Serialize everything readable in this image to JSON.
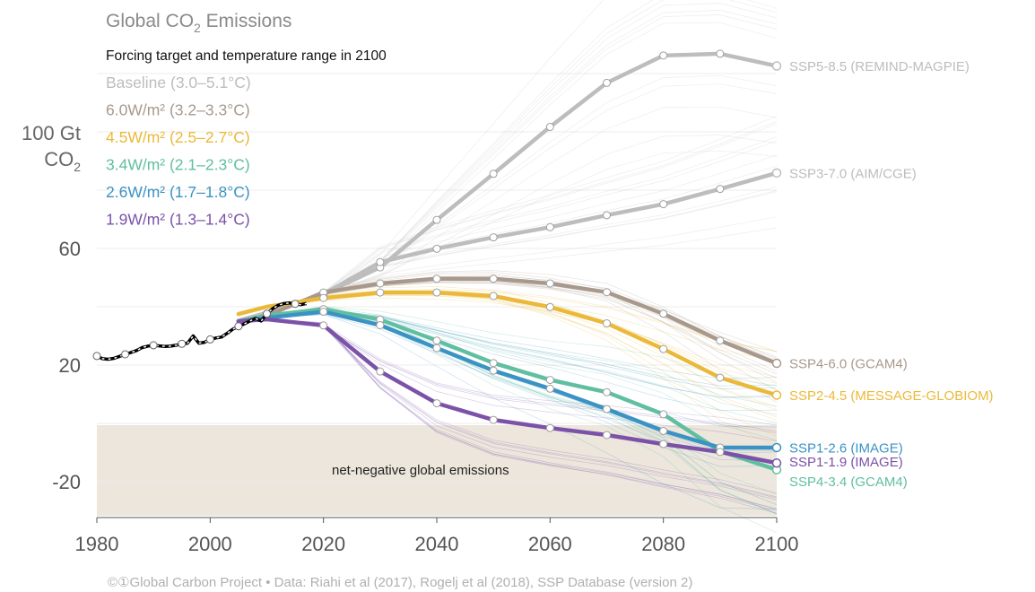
{
  "chart_data": {
    "type": "line",
    "title": "Global CO",
    "title_sub": "2",
    "title_tail": " Emissions",
    "ylabel_line1": "100 Gt",
    "ylabel_line2": "CO",
    "ylabel_sub": "2",
    "xlim": [
      1980,
      2100
    ],
    "ylim": [
      -30,
      124
    ],
    "x_ticks": [
      1980,
      2000,
      2020,
      2040,
      2060,
      2080,
      2100
    ],
    "x_tick_labels": [
      "1980",
      "2000",
      "2020",
      "2040",
      "2060",
      "2080",
      "2100"
    ],
    "y_ticks": [
      -20,
      20,
      60
    ],
    "y_tick_labels": [
      "-20",
      "20",
      "60"
    ],
    "y_top_tick": 100,
    "grid_y": [
      -20,
      0,
      20,
      40,
      60,
      80,
      100,
      120
    ],
    "legend_heading": "Forcing target and temperature range in 2100",
    "legend": [
      {
        "label": "Baseline (3.0–5.1°C)",
        "color": "#bdbdbd"
      },
      {
        "label": "6.0W/m² (3.2–3.3°C)",
        "color": "#a8998c"
      },
      {
        "label": "4.5W/m² (2.5–2.7°C)",
        "color": "#ebb93a"
      },
      {
        "label": "3.4W/m² (2.1–2.3°C)",
        "color": "#5fbfa0"
      },
      {
        "label": "2.6W/m² (1.7–1.8°C)",
        "color": "#3b93c4"
      },
      {
        "label": "1.9W/m² (1.3–1.4°C)",
        "color": "#7b52a8"
      }
    ],
    "negative_region_label": "net-negative global emissions",
    "historical": {
      "x": [
        1980,
        1981,
        1982,
        1983,
        1984,
        1985,
        1986,
        1987,
        1988,
        1989,
        1990,
        1991,
        1992,
        1993,
        1994,
        1995,
        1996,
        1997,
        1998,
        1999,
        2000,
        2001,
        2002,
        2003,
        2004,
        2005,
        2006,
        2007,
        2008,
        2009,
        2010,
        2011,
        2012,
        2013,
        2014,
        2015,
        2016,
        2017
      ],
      "y": [
        23.1,
        22.2,
        22.0,
        22.3,
        23.0,
        23.7,
        24.3,
        25.0,
        26.0,
        26.5,
        26.8,
        26.6,
        26.4,
        26.5,
        26.8,
        27.3,
        27.5,
        30.0,
        27.5,
        27.8,
        28.8,
        29.3,
        29.6,
        30.9,
        32.3,
        33.3,
        34.1,
        35.1,
        36.0,
        35.1,
        37.6,
        39.3,
        40.5,
        41.1,
        41.3,
        41.0,
        40.7,
        41.1
      ],
      "color": "#000000"
    },
    "series": [
      {
        "name": "SSP5-8.5 (REMIND-MAGPIE)",
        "color": "#bdbdbd",
        "x": [
          2005,
          2010,
          2020,
          2030,
          2040,
          2050,
          2060,
          2070,
          2080,
          2090,
          2100
        ],
        "y": [
          35.2,
          37.9,
          44.3,
          53.5,
          69.8,
          85.6,
          101.7,
          116.8,
          126.2,
          126.8,
          122.6
        ]
      },
      {
        "name": "SSP3-7.0 (AIM/CGE)",
        "color": "#bdbdbd",
        "x": [
          2005,
          2010,
          2020,
          2030,
          2040,
          2050,
          2060,
          2070,
          2080,
          2090,
          2100
        ],
        "y": [
          35.2,
          37.9,
          44.3,
          55.3,
          59.9,
          63.8,
          67.3,
          71.4,
          75.2,
          80.4,
          85.9
        ]
      },
      {
        "name": "SSP4-6.0 (GCAM4)",
        "color": "#a8998c",
        "x": [
          2005,
          2010,
          2020,
          2030,
          2040,
          2050,
          2060,
          2070,
          2080,
          2090,
          2100
        ],
        "y": [
          35.0,
          37.0,
          44.9,
          48.0,
          49.6,
          49.6,
          48.0,
          45.0,
          37.6,
          28.4,
          20.6
        ]
      },
      {
        "name": "SSP2-4.5 (MESSAGE-GLOBIOM)",
        "color": "#ebb93a",
        "x": [
          2005,
          2010,
          2020,
          2030,
          2040,
          2050,
          2060,
          2070,
          2080,
          2090,
          2100
        ],
        "y": [
          37.5,
          40.0,
          43.0,
          44.9,
          44.9,
          43.7,
          39.9,
          34.3,
          25.5,
          15.7,
          9.7
        ]
      },
      {
        "name": "SSP4-3.4 (GCAM4)",
        "color": "#5fbfa0",
        "x": [
          2005,
          2010,
          2020,
          2030,
          2040,
          2050,
          2060,
          2070,
          2080,
          2090,
          2100
        ],
        "y": [
          35.0,
          37.0,
          39.2,
          35.6,
          28.4,
          20.7,
          14.9,
          10.7,
          3.1,
          -9.5,
          -15.9
        ]
      },
      {
        "name": "SSP1-2.6 (IMAGE)",
        "color": "#3b93c4",
        "x": [
          2005,
          2010,
          2020,
          2030,
          2040,
          2050,
          2060,
          2070,
          2080,
          2090,
          2100
        ],
        "y": [
          35.0,
          36.2,
          38.3,
          33.7,
          25.8,
          18.1,
          11.9,
          4.9,
          -2.6,
          -8.3,
          -8.3
        ]
      },
      {
        "name": "SSP1-1.9 (IMAGE)",
        "color": "#7b52a8",
        "x": [
          2005,
          2010,
          2020,
          2030,
          2040,
          2050,
          2060,
          2070,
          2080,
          2090,
          2100
        ],
        "y": [
          35.0,
          35.7,
          33.6,
          17.8,
          6.9,
          1.2,
          -1.6,
          -4.0,
          -7.1,
          -9.8,
          -13.6
        ]
      }
    ]
  },
  "source_note": "Global Carbon Project  •  Data: Riahi et al (2017), Rogelj et al (2018), SSP Database (version 2)",
  "cc_mark": "©",
  "by_mark": "①"
}
